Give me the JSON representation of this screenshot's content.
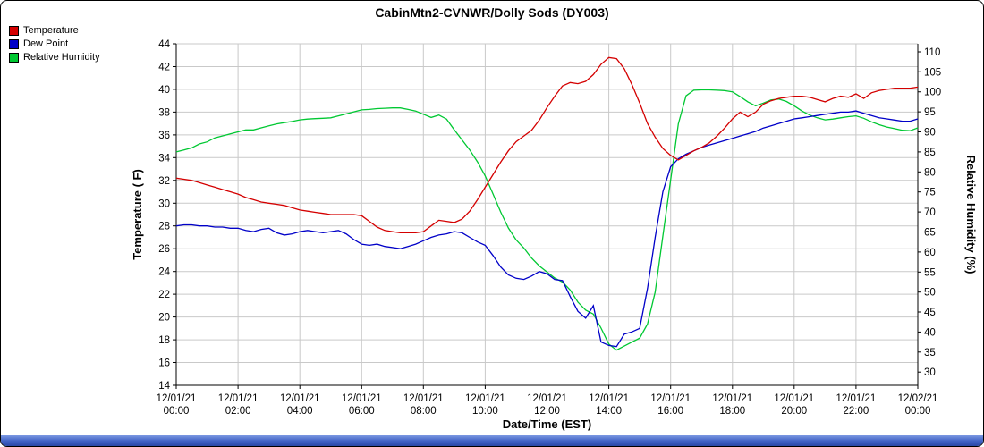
{
  "header": {
    "title": "CabinMtn2-CVNWR/Dolly Sods (DY003)"
  },
  "legend": [
    {
      "label": "Temperature",
      "color": "#d40000"
    },
    {
      "label": "Dew Point",
      "color": "#0000c8"
    },
    {
      "label": "Relative Humidity",
      "color": "#00c832"
    }
  ],
  "chart_data": {
    "type": "line",
    "title": "CabinMtn2-CVNWR/Dolly Sods (DY003)",
    "xlabel": "Date/Time (EST)",
    "ylabel_left": "Temperature ( F)",
    "ylabel_right": "Relative Humidity (%)",
    "grid": true,
    "legend_position": "top-left",
    "x_range": [
      0,
      24
    ],
    "x_start_hour": 0,
    "x_step_hours": 0.25,
    "x_ticks": [
      {
        "hour": 0,
        "date": "12/01/21",
        "time": "00:00"
      },
      {
        "hour": 2,
        "date": "12/01/21",
        "time": "02:00"
      },
      {
        "hour": 4,
        "date": "12/01/21",
        "time": "04:00"
      },
      {
        "hour": 6,
        "date": "12/01/21",
        "time": "06:00"
      },
      {
        "hour": 8,
        "date": "12/01/21",
        "time": "08:00"
      },
      {
        "hour": 10,
        "date": "12/01/21",
        "time": "10:00"
      },
      {
        "hour": 12,
        "date": "12/01/21",
        "time": "12:00"
      },
      {
        "hour": 14,
        "date": "12/01/21",
        "time": "14:00"
      },
      {
        "hour": 16,
        "date": "12/01/21",
        "time": "16:00"
      },
      {
        "hour": 18,
        "date": "12/01/21",
        "time": "18:00"
      },
      {
        "hour": 20,
        "date": "12/01/21",
        "time": "20:00"
      },
      {
        "hour": 22,
        "date": "12/01/21",
        "time": "22:00"
      },
      {
        "hour": 24,
        "date": "12/02/21",
        "time": "00:00"
      }
    ],
    "y_left": {
      "min": 14,
      "max": 44,
      "tick_step": 2,
      "ticks": [
        44,
        42,
        40,
        38,
        36,
        34,
        32,
        30,
        28,
        26,
        24,
        22,
        20,
        18,
        16,
        14
      ]
    },
    "y_right": {
      "tick_step": 5,
      "ticks": [
        110,
        105,
        100,
        95,
        90,
        85,
        80,
        75,
        70,
        65,
        60,
        55,
        50,
        45,
        40,
        35,
        30
      ],
      "map_min": 26.7,
      "map_max": 112.0
    },
    "series": [
      {
        "name": "Temperature",
        "axis": "left",
        "color": "#d40000",
        "values": [
          32.2,
          32.1,
          32.0,
          31.8,
          31.6,
          31.4,
          31.2,
          31.0,
          30.8,
          30.5,
          30.3,
          30.1,
          30.0,
          29.9,
          29.8,
          29.6,
          29.4,
          29.3,
          29.2,
          29.1,
          29.0,
          29.0,
          29.0,
          29.0,
          28.9,
          28.4,
          27.9,
          27.6,
          27.5,
          27.4,
          27.4,
          27.4,
          27.5,
          28.0,
          28.5,
          28.4,
          28.3,
          28.6,
          29.3,
          30.3,
          31.4,
          32.5,
          33.6,
          34.6,
          35.4,
          35.9,
          36.4,
          37.3,
          38.4,
          39.4,
          40.3,
          40.6,
          40.5,
          40.7,
          41.3,
          42.2,
          42.8,
          42.7,
          41.8,
          40.4,
          38.8,
          37.0,
          35.8,
          34.8,
          34.2,
          33.8,
          34.2,
          34.6,
          34.9,
          35.3,
          35.9,
          36.6,
          37.4,
          38.0,
          37.6,
          38.0,
          38.7,
          39.0,
          39.2,
          39.3,
          39.4,
          39.4,
          39.3,
          39.1,
          38.9,
          39.2,
          39.4,
          39.3,
          39.6,
          39.2,
          39.7,
          39.9,
          40.0,
          40.1,
          40.1,
          40.1,
          40.2
        ]
      },
      {
        "name": "Dew Point",
        "axis": "left",
        "color": "#0000c8",
        "values": [
          28.0,
          28.1,
          28.1,
          28.0,
          28.0,
          27.9,
          27.9,
          27.8,
          27.8,
          27.6,
          27.5,
          27.7,
          27.8,
          27.4,
          27.2,
          27.3,
          27.5,
          27.6,
          27.5,
          27.4,
          27.5,
          27.6,
          27.3,
          26.8,
          26.4,
          26.3,
          26.4,
          26.2,
          26.1,
          26.0,
          26.2,
          26.4,
          26.7,
          27.0,
          27.2,
          27.3,
          27.5,
          27.4,
          27.0,
          26.6,
          26.3,
          25.4,
          24.4,
          23.7,
          23.4,
          23.3,
          23.6,
          24.0,
          23.8,
          23.3,
          23.2,
          21.8,
          20.5,
          19.9,
          21.0,
          17.8,
          17.5,
          17.4,
          18.5,
          18.7,
          19.0,
          22.5,
          27.0,
          31.0,
          33.2,
          33.9,
          34.3,
          34.6,
          34.9,
          35.1,
          35.3,
          35.5,
          35.7,
          35.9,
          36.1,
          36.3,
          36.6,
          36.8,
          37.0,
          37.2,
          37.4,
          37.5,
          37.6,
          37.7,
          37.8,
          37.9,
          38.0,
          38.0,
          38.1,
          37.9,
          37.7,
          37.5,
          37.4,
          37.3,
          37.2,
          37.2,
          37.4
        ]
      },
      {
        "name": "Relative Humidity",
        "axis": "right",
        "color": "#00c832",
        "values": [
          85.0,
          85.5,
          86.0,
          87.0,
          87.5,
          88.5,
          89.0,
          89.5,
          90.0,
          90.5,
          90.5,
          91.0,
          91.5,
          92.0,
          92.3,
          92.6,
          93.0,
          93.2,
          93.3,
          93.4,
          93.5,
          94.0,
          94.5,
          95.0,
          95.5,
          95.6,
          95.8,
          95.9,
          96.0,
          96.0,
          95.6,
          95.2,
          94.4,
          93.6,
          94.2,
          93.2,
          90.5,
          88.0,
          85.5,
          82.5,
          79.0,
          74.5,
          70.0,
          66.0,
          63.0,
          61.0,
          58.5,
          56.5,
          55.0,
          53.5,
          52.5,
          50.5,
          47.5,
          45.5,
          44.5,
          41.0,
          37.0,
          35.5,
          36.5,
          37.5,
          38.5,
          42.0,
          50.0,
          64.0,
          78.0,
          92.0,
          99.0,
          100.4,
          100.5,
          100.5,
          100.4,
          100.3,
          100.0,
          98.8,
          97.5,
          96.5,
          97.2,
          98.0,
          98.2,
          97.6,
          96.5,
          95.2,
          94.2,
          93.5,
          93.0,
          93.2,
          93.5,
          93.8,
          94.0,
          93.4,
          92.5,
          91.8,
          91.2,
          90.8,
          90.4,
          90.3,
          91.0
        ]
      }
    ]
  }
}
